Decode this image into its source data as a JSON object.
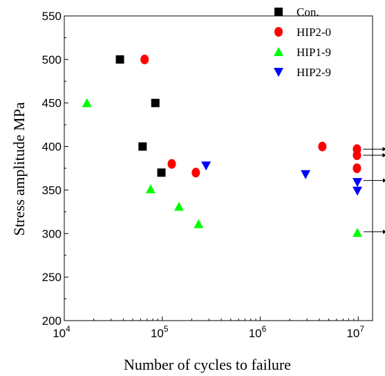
{
  "chart_data": {
    "type": "scatter",
    "xlabel": "Number of cycles to failure",
    "ylabel": "Stress amplitude   MPa",
    "xscale": "log",
    "xlim": [
      10000,
      14000000
    ],
    "ylim": [
      200,
      550
    ],
    "x_ticks": [
      {
        "value": 10000,
        "base": "10",
        "exp": "4"
      },
      {
        "value": 100000,
        "base": "10",
        "exp": "5"
      },
      {
        "value": 1000000,
        "base": "10",
        "exp": "6"
      },
      {
        "value": 10000000,
        "base": "10",
        "exp": "7"
      }
    ],
    "y_ticks": [
      200,
      250,
      300,
      350,
      400,
      450,
      500,
      550
    ],
    "legend_position": "top-right",
    "grid": false,
    "series": [
      {
        "name": "Con.",
        "marker": "square",
        "color": "#000000",
        "points": [
          [
            37000,
            500
          ],
          [
            85000,
            450
          ],
          [
            63000,
            400
          ],
          [
            98000,
            370
          ]
        ]
      },
      {
        "name": "HIP2-0",
        "marker": "circle",
        "color": "#ff0000",
        "points": [
          [
            66000,
            500
          ],
          [
            4300000,
            400
          ],
          [
            9700000,
            397
          ],
          [
            9700000,
            390
          ],
          [
            125000,
            380
          ],
          [
            9700000,
            375
          ],
          [
            220000,
            370
          ]
        ]
      },
      {
        "name": "HIP1-9",
        "marker": "triangle-up",
        "color": "#00ff00",
        "points": [
          [
            17000,
            450
          ],
          [
            76000,
            351
          ],
          [
            148000,
            331
          ],
          [
            235000,
            311
          ],
          [
            9800000,
            301
          ]
        ]
      },
      {
        "name": "HIP2-9",
        "marker": "triangle-down",
        "color": "#0000ff",
        "points": [
          [
            280000,
            378
          ],
          [
            2900000,
            368
          ],
          [
            9800000,
            359
          ],
          [
            9800000,
            349
          ]
        ]
      }
    ],
    "runouts": [
      {
        "x": 9700000,
        "y": 397
      },
      {
        "x": 9700000,
        "y": 390
      },
      {
        "x": 9800000,
        "y": 361
      },
      {
        "x": 9800000,
        "y": 302
      }
    ]
  }
}
